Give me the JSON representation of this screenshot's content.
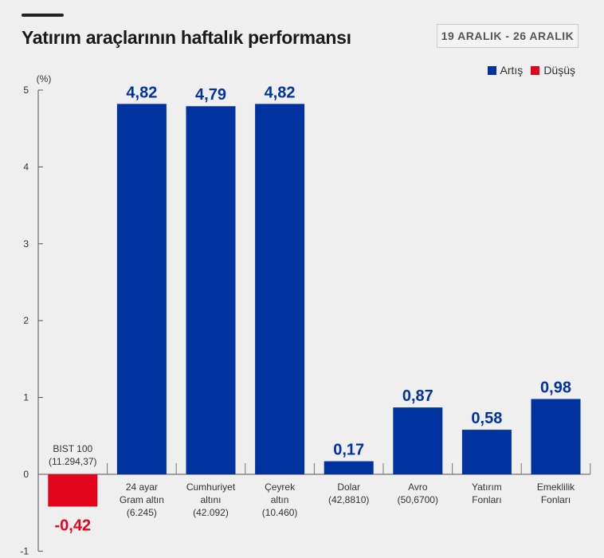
{
  "header": {
    "title": "Yatırım araçlarının haftalık performansı",
    "date_range": "19 ARALIK - 26 ARALIK"
  },
  "legend": [
    {
      "label": "Artış",
      "color": "#0033a0"
    },
    {
      "label": "Düşüş",
      "color": "#e3051b"
    }
  ],
  "chart_data": {
    "type": "bar",
    "ylabel": "(%)",
    "ylim": [
      -1,
      5
    ],
    "yticks": [
      "-1",
      "0",
      "1",
      "2",
      "3",
      "4",
      "5"
    ],
    "categories": [
      [
        "BIST 100",
        "(11.294,37)"
      ],
      [
        "24 ayar",
        "Gram altın",
        "(6.245)"
      ],
      [
        "Cumhuriyet",
        "altını",
        "(42.092)"
      ],
      [
        "Çeyrek",
        "altın",
        "(10.460)"
      ],
      [
        "Dolar",
        "(42,8810)"
      ],
      [
        "Avro",
        "(50,6700)"
      ],
      [
        "Yatırım",
        "Fonları"
      ],
      [
        "Emeklilik",
        "Fonları"
      ]
    ],
    "values": [
      -0.42,
      4.82,
      4.79,
      4.82,
      0.17,
      0.87,
      0.58,
      0.98
    ],
    "value_labels": [
      "-0,42",
      "4,82",
      "4,79",
      "4,82",
      "0,17",
      "0,87",
      "0,58",
      "0,98"
    ],
    "colors": {
      "up": "#0033a0",
      "down": "#e3051b"
    }
  }
}
